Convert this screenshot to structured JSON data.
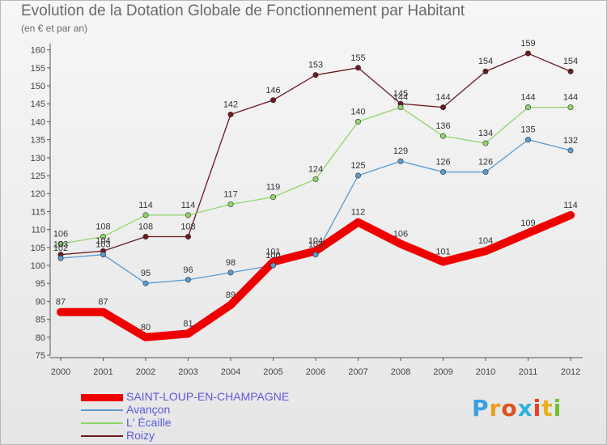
{
  "header": {
    "title": "Evolution de la Dotation Globale de Fonctionnement par Habitant",
    "subtitle": "(en € et par an)"
  },
  "logo": {
    "text": "Proxiti",
    "colors": [
      "#3aa0e0",
      "#e8a020",
      "#e05020",
      "#30b0e0",
      "#e84020",
      "#e8b020",
      "#70c030"
    ]
  },
  "chart_data": {
    "type": "line",
    "title": "Evolution de la Dotation Globale de Fonctionnement par Habitant",
    "subtitle": "(en € et par an)",
    "xlabel": "",
    "ylabel": "",
    "ylim": [
      75,
      160
    ],
    "y_ticks": [
      75,
      80,
      85,
      90,
      95,
      100,
      105,
      110,
      115,
      120,
      125,
      130,
      135,
      140,
      145,
      150,
      155,
      160
    ],
    "categories": [
      "2000",
      "2001",
      "2002",
      "2003",
      "2004",
      "2005",
      "2006",
      "2007",
      "2008",
      "2009",
      "2010",
      "2011",
      "2012"
    ],
    "grid": false,
    "legend_position": "bottom-left",
    "series": [
      {
        "name": "Roizy",
        "color": "#6b1a1f",
        "values": [
          103,
          104,
          108,
          108,
          142,
          146,
          153,
          155,
          145,
          144,
          154,
          159,
          154
        ]
      },
      {
        "name": "L' Écaille",
        "color": "#8fd66a",
        "values": [
          106,
          108,
          114,
          114,
          117,
          119,
          124,
          140,
          144,
          136,
          134,
          144,
          144
        ]
      },
      {
        "name": "Avançon",
        "color": "#5a9bd0",
        "values": [
          102,
          103,
          95,
          96,
          98,
          100,
          103,
          125,
          129,
          126,
          126,
          135,
          132
        ]
      },
      {
        "name": "SAINT-LOUP-EN-CHAMPAGNE",
        "color": "#ee0000",
        "values": [
          87,
          87,
          80,
          81,
          89,
          101,
          104,
          112,
          106,
          101,
          104,
          109,
          114
        ]
      }
    ]
  },
  "legend": [
    {
      "name": "SAINT-LOUP-EN-CHAMPAGNE",
      "color": "#ee0000"
    },
    {
      "name": "Avançon",
      "color": "#5a9bd0"
    },
    {
      "name": "L' Écaille",
      "color": "#8fd66a"
    },
    {
      "name": "Roizy",
      "color": "#6b1a1f"
    }
  ]
}
